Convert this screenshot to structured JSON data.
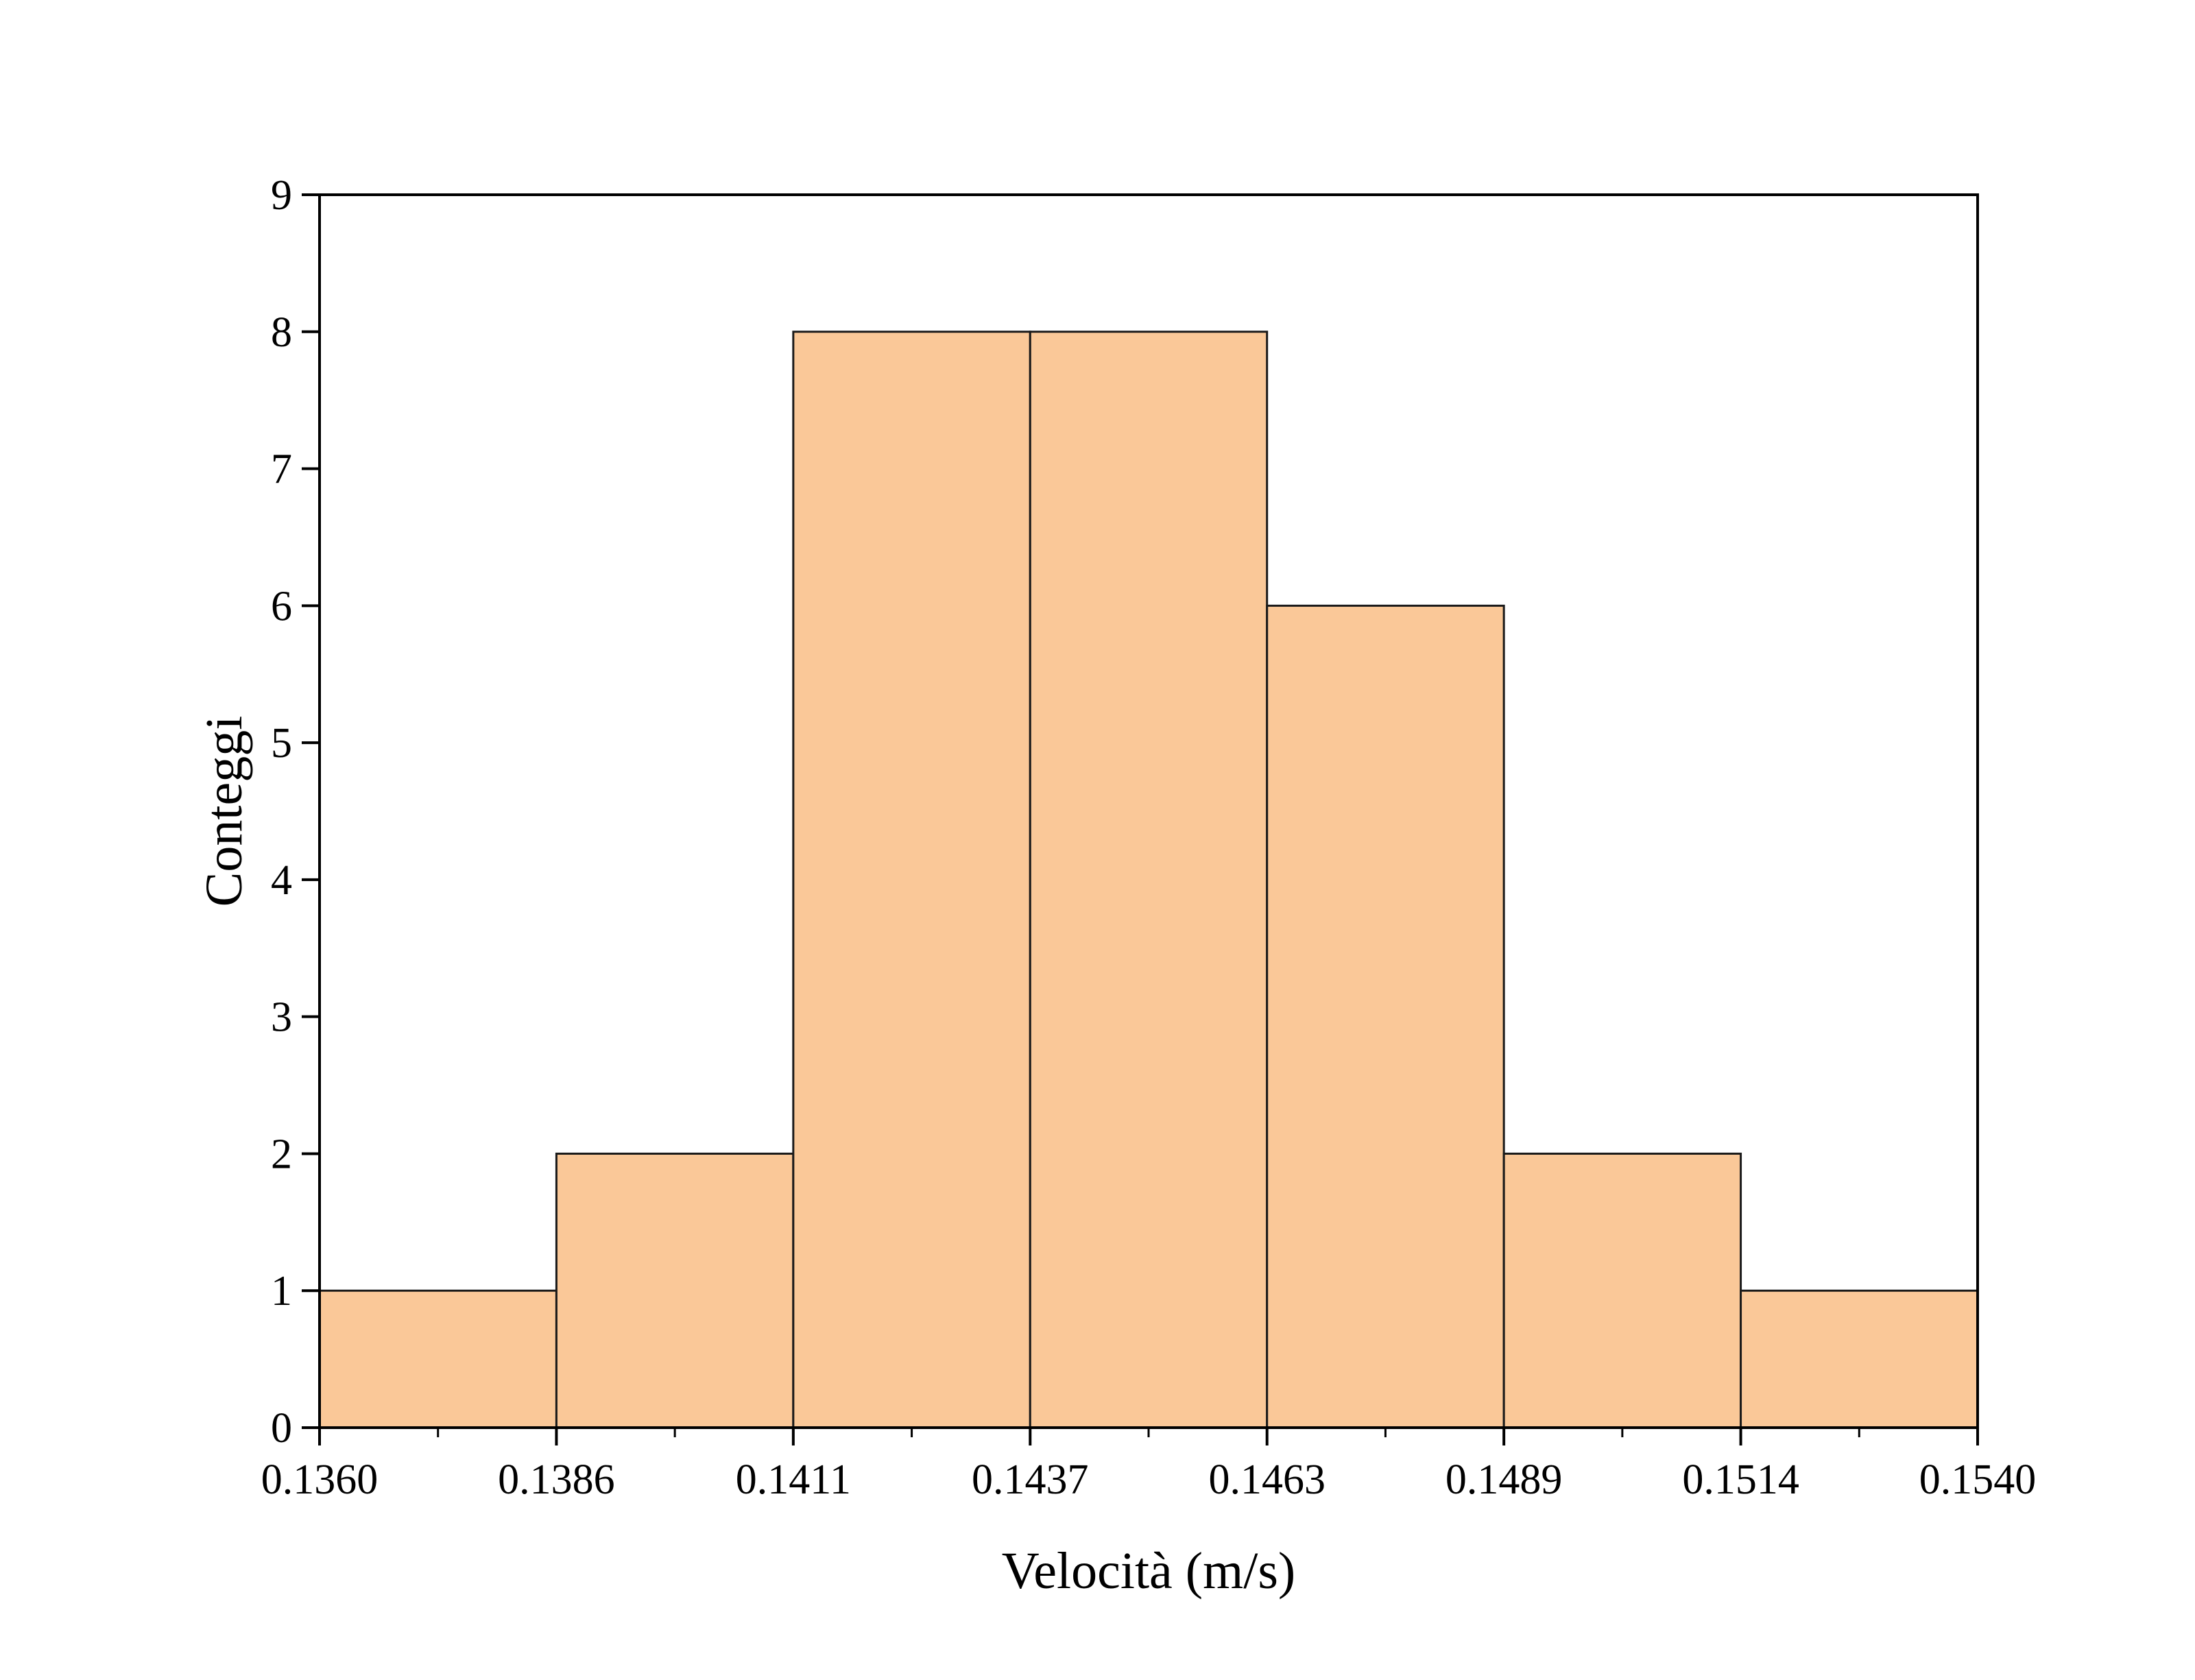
{
  "chart_data": {
    "type": "bar",
    "title": "",
    "xlabel": "Velocità (m/s)",
    "ylabel": "Conteggi",
    "bin_edges": [
      "0.1360",
      "0.1386",
      "0.1411",
      "0.1437",
      "0.1463",
      "0.1489",
      "0.1514",
      "0.1540"
    ],
    "values": [
      1,
      2,
      8,
      8,
      6,
      2,
      1
    ],
    "yticks": [
      "0",
      "1",
      "2",
      "3",
      "4",
      "5",
      "6",
      "7",
      "8",
      "9"
    ],
    "ylim": [
      0,
      9
    ],
    "xlim": [
      0.136,
      0.154
    ],
    "grid": false,
    "bar_color": "#FAC898",
    "edge_color": "#1a1a1a"
  }
}
